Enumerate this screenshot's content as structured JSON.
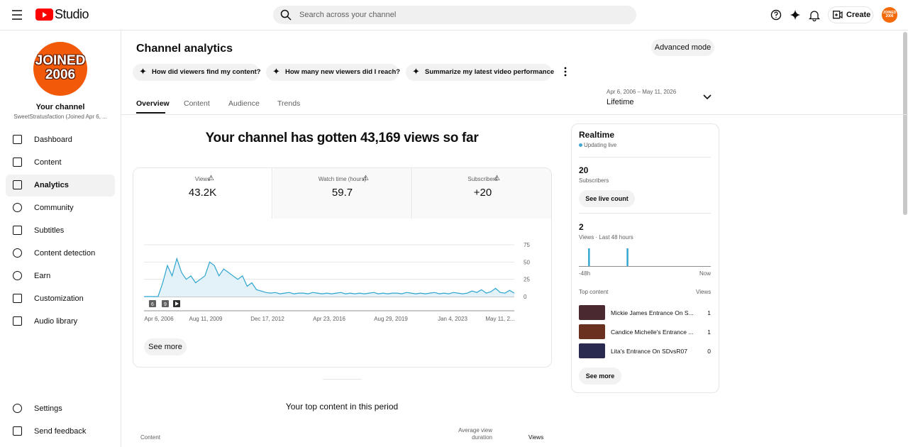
{
  "header": {
    "logo": "Studio",
    "search_placeholder": "Search across your channel",
    "create": "Create",
    "avatar": "JOINED 2006"
  },
  "sidebar": {
    "avatar_line1": "JOINED",
    "avatar_line2": "2006",
    "channel_title": "Your channel",
    "channel_name": "SweetStratusfaction (Joined Apr 6, ...",
    "nav": [
      "Dashboard",
      "Content",
      "Analytics",
      "Community",
      "Subtitles",
      "Content detection",
      "Earn",
      "Customization",
      "Audio library"
    ],
    "bottom": [
      "Settings",
      "Send feedback"
    ]
  },
  "page": {
    "title": "Channel analytics",
    "advanced": "Advanced mode",
    "prompts": [
      "How did viewers find my content?",
      "How many new viewers did I reach?",
      "Summarize my latest video performance"
    ],
    "tabs": [
      "Overview",
      "Content",
      "Audience",
      "Trends"
    ],
    "date_range": "Apr 6, 2006 – May 11, 2026",
    "period": "Lifetime",
    "headline": "Your channel has gotten 43,169 views so far"
  },
  "metrics": [
    {
      "label": "Views",
      "value": "43.2K"
    },
    {
      "label": "Watch time (hours)",
      "value": "59.7"
    },
    {
      "label": "Subscribers",
      "value": "+20"
    }
  ],
  "chart": {
    "ylim": [
      0,
      75
    ],
    "yticks": [
      0,
      25,
      50,
      75
    ],
    "x_labels": [
      "Apr 6, 2006",
      "Aug 11, 2009",
      "Dec 17, 2012",
      "Apr 23, 2016",
      "Aug 29, 2019",
      "Jan 4, 2023",
      "May 11, 2..."
    ],
    "markers": [
      "6",
      "9"
    ],
    "values": [
      0,
      0,
      0,
      0,
      20,
      45,
      30,
      55,
      35,
      25,
      30,
      20,
      25,
      30,
      50,
      45,
      30,
      40,
      35,
      30,
      25,
      30,
      15,
      20,
      10,
      8,
      6,
      5,
      6,
      4,
      5,
      6,
      4,
      5,
      5,
      4,
      6,
      5,
      4,
      5,
      4,
      5,
      6,
      4,
      5,
      4,
      5,
      4,
      5,
      6,
      4,
      5,
      4,
      5,
      5,
      4,
      6,
      5,
      4,
      5,
      4,
      5,
      6,
      4,
      5,
      4,
      6,
      5,
      4,
      5,
      8,
      6,
      10,
      5,
      7,
      12,
      6,
      5,
      9,
      5
    ],
    "see_more": "See more"
  },
  "top_content": {
    "title": "Your top content in this period",
    "columns": [
      "Content",
      "Average view duration",
      "Views"
    ]
  },
  "realtime": {
    "title": "Realtime",
    "status": "Updating live",
    "subs": "20",
    "subs_label": "Subscribers",
    "live_btn": "See live count",
    "views": "2",
    "views_label": "Views · Last 48 hours",
    "bars": [
      0,
      0,
      0,
      1,
      0,
      0,
      0,
      0,
      0,
      0,
      0,
      0,
      0,
      0,
      0,
      0,
      0,
      1,
      0,
      0,
      0,
      0,
      0,
      0,
      0,
      0,
      0,
      0,
      0,
      0,
      0,
      0,
      0,
      0,
      0,
      0,
      0,
      0,
      0,
      0,
      0,
      0,
      0,
      0,
      0,
      0,
      0,
      0
    ],
    "axis_start": "-48h",
    "axis_end": "Now",
    "top_content": "Top content",
    "views_col": "Views",
    "items": [
      {
        "title": "Mickie James Entrance On S...",
        "views": "1"
      },
      {
        "title": "Candice Michelle's Entrance ...",
        "views": "1"
      },
      {
        "title": "Lita's Entrance On SDvsR07",
        "views": "0"
      }
    ],
    "see_more": "See more"
  }
}
